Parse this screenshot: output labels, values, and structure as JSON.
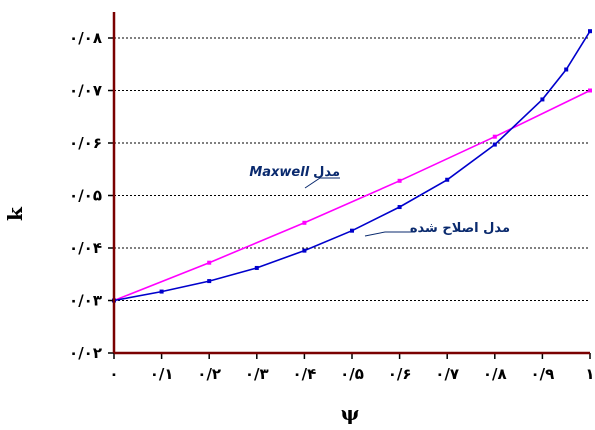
{
  "chart_data": {
    "type": "line",
    "xlabel": "ψ",
    "ylabel": "k",
    "xlim": [
      0,
      1
    ],
    "ylim": [
      0.02,
      0.08
    ],
    "x_ticks": [
      0,
      0.1,
      0.2,
      0.3,
      0.4,
      0.5,
      0.6,
      0.7,
      0.8,
      0.9,
      1
    ],
    "x_tick_labels": [
      "۰",
      "۰/۱",
      "۰/۲",
      "۰/۳",
      "۰/۴",
      "۰/۵",
      "۰/۶",
      "۰/۷",
      "۰/۸",
      "۰/۹",
      "۱"
    ],
    "y_ticks": [
      0.02,
      0.03,
      0.04,
      0.05,
      0.06,
      0.07,
      0.08
    ],
    "y_tick_labels": [
      "۰/۰۲",
      "۰/۰۳",
      "۰/۰۴",
      "۰/۰۵",
      "۰/۰۶",
      "۰/۰۷",
      "۰/۰۸"
    ],
    "grid": "horizontal dotted",
    "series": [
      {
        "name": "مدل Maxwell",
        "color": "#ff00ff",
        "x": [
          0,
          0.2,
          0.4,
          0.6,
          0.8,
          1.0
        ],
        "y": [
          0.03,
          0.0372,
          0.0448,
          0.0528,
          0.0612,
          0.07
        ]
      },
      {
        "name": "مدل اصلاح شده",
        "color": "#0000cc",
        "x": [
          0,
          0.1,
          0.2,
          0.3,
          0.4,
          0.5,
          0.6,
          0.7,
          0.8,
          0.9,
          0.95,
          1.0
        ],
        "y": [
          0.03,
          0.0317,
          0.0337,
          0.0362,
          0.0395,
          0.0433,
          0.0478,
          0.053,
          0.0597,
          0.0683,
          0.074,
          0.0813
        ]
      }
    ],
    "annotations": [
      {
        "prefix": "مدل",
        "text": "Maxwell"
      },
      {
        "text": "مدل اصلاح شده"
      }
    ]
  }
}
